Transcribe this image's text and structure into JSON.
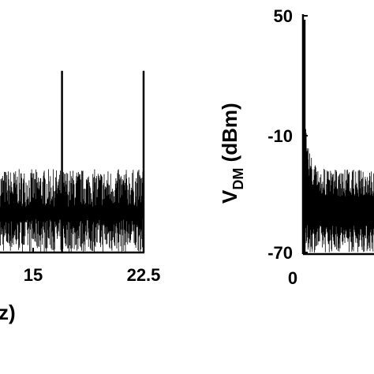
{
  "chart_data": [
    {
      "type": "line",
      "description_of_visible_part": "left panel, cropped at image left edge",
      "xlabel_visible_fragment": "z)",
      "x_ticks": [
        "15",
        "22.5"
      ],
      "x_tick_values": [
        15,
        22.5
      ],
      "xlim_visible": [
        9.3,
        22.5
      ],
      "noise_floor_range": [
        0.0,
        0.45
      ],
      "peaks": [
        {
          "x": 15,
          "value": 0.98
        },
        {
          "x": 22.5,
          "value": 0.98
        }
      ]
    },
    {
      "type": "line",
      "ylabel": "V_DM (dBm)",
      "ylabel_main": "V",
      "ylabel_sub": "DM",
      "ylabel_unit": " (dBm)",
      "y_ticks": [
        "50",
        "-10",
        "-70"
      ],
      "y_tick_values": [
        50,
        -10,
        -70
      ],
      "ylim": [
        -70,
        50
      ],
      "x_ticks": [
        "0"
      ],
      "x_tick_values": [
        0
      ],
      "peaks": [
        {
          "x": 0,
          "value": 48
        }
      ],
      "noise_floor_range_dBm": [
        -70,
        -15
      ]
    }
  ]
}
